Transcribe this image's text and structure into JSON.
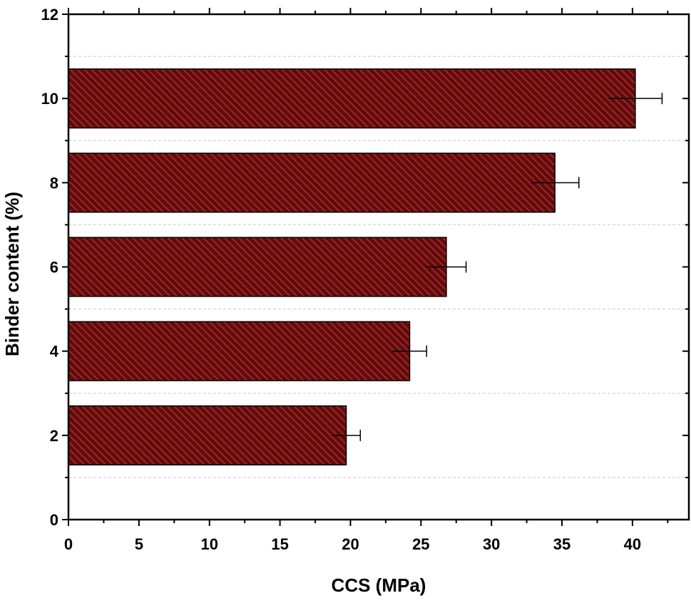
{
  "chart_data": {
    "type": "bar",
    "orientation": "horizontal",
    "xlabel": "CCS (MPa)",
    "ylabel": "Binder content (%)",
    "xlim": [
      0,
      44
    ],
    "ylim": [
      0,
      12
    ],
    "x_ticks": [
      "0",
      "5",
      "10",
      "15",
      "20",
      "25",
      "30",
      "35",
      "40"
    ],
    "y_ticks": [
      "0",
      "2",
      "4",
      "6",
      "8",
      "10",
      "12"
    ],
    "categories": [
      "2",
      "4",
      "6",
      "8",
      "10"
    ],
    "category_positions": [
      2,
      4,
      6,
      8,
      10
    ],
    "values": [
      19.7,
      24.2,
      26.8,
      34.5,
      40.2
    ],
    "errors": [
      1.0,
      1.2,
      1.4,
      1.7,
      1.9
    ],
    "bar_fill": "#8b1a1a",
    "bar_hatch": "#e8232a",
    "grid": "horizontal dashed",
    "legend": "none"
  }
}
